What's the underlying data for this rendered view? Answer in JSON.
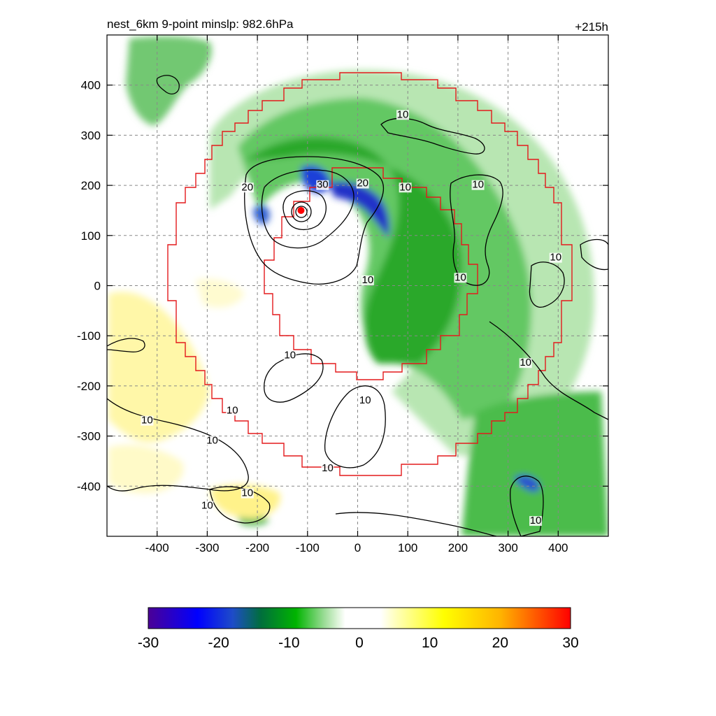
{
  "chart_data": {
    "type": "heatmap",
    "title": "nest_6km  9-point minslp: 982.6hPa",
    "time_label": "+215h",
    "xlim": [
      -500,
      500
    ],
    "ylim": [
      -500,
      500
    ],
    "x_ticks": [
      -400,
      -300,
      -200,
      -100,
      0,
      100,
      200,
      300,
      400
    ],
    "y_ticks": [
      400,
      300,
      200,
      100,
      0,
      -100,
      -200,
      -300,
      -400
    ],
    "grid": true,
    "grid_style": "dashed",
    "storm_center": {
      "x": -113,
      "y": 150
    },
    "colorbar": {
      "min": -30,
      "max": 30,
      "ticks": [
        -30,
        -20,
        -10,
        0,
        10,
        20,
        30
      ],
      "stops": [
        {
          "value": -30,
          "color": "#4b0096"
        },
        {
          "value": -23,
          "color": "#0000ff"
        },
        {
          "value": -18,
          "color": "#1e4cc8"
        },
        {
          "value": -14,
          "color": "#006e3c"
        },
        {
          "value": -9,
          "color": "#00b400"
        },
        {
          "value": -5,
          "color": "#9bdc96"
        },
        {
          "value": -3,
          "color": "#e0f5dc"
        },
        {
          "value": -2,
          "color": "#ffffff"
        },
        {
          "value": 3,
          "color": "#ffffff"
        },
        {
          "value": 5,
          "color": "#ffffc0"
        },
        {
          "value": 12,
          "color": "#ffff00"
        },
        {
          "value": 20,
          "color": "#ffb400"
        },
        {
          "value": 30,
          "color": "#ff0000"
        }
      ]
    },
    "contour_labels": [
      {
        "text": "10",
        "x": 90,
        "y": 335
      },
      {
        "text": "20",
        "x": -220,
        "y": 190
      },
      {
        "text": "30",
        "x": -70,
        "y": 195
      },
      {
        "text": "20",
        "x": 10,
        "y": 198
      },
      {
        "text": "10",
        "x": 95,
        "y": 190
      },
      {
        "text": "10",
        "x": 240,
        "y": 195
      },
      {
        "text": "10",
        "x": 395,
        "y": 50
      },
      {
        "text": "10",
        "x": 20,
        "y": 5
      },
      {
        "text": "10",
        "x": 205,
        "y": 10
      },
      {
        "text": "10",
        "x": 335,
        "y": -160
      },
      {
        "text": "10",
        "x": -135,
        "y": -145
      },
      {
        "text": "10",
        "x": -250,
        "y": -255
      },
      {
        "text": "10",
        "x": -420,
        "y": -275
      },
      {
        "text": "10",
        "x": -290,
        "y": -315
      },
      {
        "text": "10",
        "x": 15,
        "y": -235
      },
      {
        "text": "10",
        "x": -60,
        "y": -370
      },
      {
        "text": "10",
        "x": -220,
        "y": -420
      },
      {
        "text": "10",
        "x": -300,
        "y": -445
      },
      {
        "text": "10",
        "x": 355,
        "y": -475
      }
    ]
  }
}
